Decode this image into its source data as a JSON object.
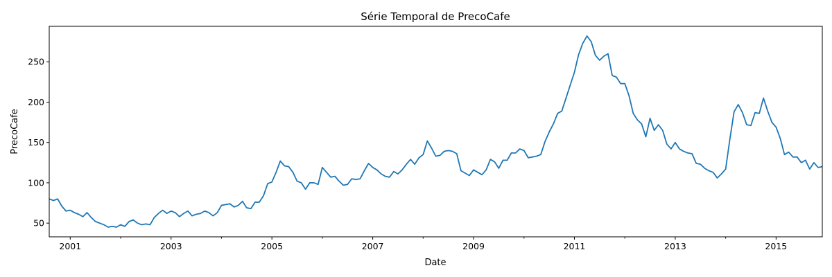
{
  "chart_data": {
    "type": "line",
    "title": "Série Temporal de PrecoCafe",
    "xlabel": "Date",
    "ylabel": "PrecoCafe",
    "x_range": [
      "2000-08",
      "2015-12"
    ],
    "ylim": [
      33,
      294
    ],
    "x_ticks": [
      "2001",
      "2003",
      "2005",
      "2007",
      "2009",
      "2011",
      "2013",
      "2015"
    ],
    "y_ticks": [
      "50",
      "100",
      "150",
      "200",
      "250"
    ],
    "grid": false,
    "line_color": "#1f77b4",
    "series": [
      {
        "x": [
          "2000-08",
          "2000-09",
          "2000-10",
          "2000-11",
          "2000-12",
          "2001-01",
          "2001-02",
          "2001-03",
          "2001-04",
          "2001-05",
          "2001-06",
          "2001-07",
          "2001-08",
          "2001-09",
          "2001-10",
          "2001-11",
          "2001-12",
          "2002-01",
          "2002-02",
          "2002-03",
          "2002-04",
          "2002-05",
          "2002-06",
          "2002-07",
          "2002-08",
          "2002-09",
          "2002-10",
          "2002-11",
          "2002-12",
          "2003-01",
          "2003-02",
          "2003-03",
          "2003-04",
          "2003-05",
          "2003-06",
          "2003-07",
          "2003-08",
          "2003-09",
          "2003-10",
          "2003-11",
          "2003-12",
          "2004-01",
          "2004-02",
          "2004-03",
          "2004-04",
          "2004-05",
          "2004-06",
          "2004-07",
          "2004-08",
          "2004-09",
          "2004-10",
          "2004-11",
          "2004-12",
          "2005-01",
          "2005-02",
          "2005-03",
          "2005-04",
          "2005-05",
          "2005-06",
          "2005-07",
          "2005-08",
          "2005-09",
          "2005-10",
          "2005-11",
          "2005-12",
          "2006-01",
          "2006-02",
          "2006-03",
          "2006-04",
          "2006-05",
          "2006-06",
          "2006-07",
          "2006-08",
          "2006-09",
          "2006-10",
          "2006-11",
          "2006-12",
          "2007-01",
          "2007-02",
          "2007-03",
          "2007-04",
          "2007-05",
          "2007-06",
          "2007-07",
          "2007-08",
          "2007-09",
          "2007-10",
          "2007-11",
          "2007-12",
          "2008-01",
          "2008-02",
          "2008-03",
          "2008-04",
          "2008-05",
          "2008-06",
          "2008-07",
          "2008-08",
          "2008-09",
          "2008-10",
          "2008-11",
          "2008-12",
          "2009-01",
          "2009-02",
          "2009-03",
          "2009-04",
          "2009-05",
          "2009-06",
          "2009-07",
          "2009-08",
          "2009-09",
          "2009-10",
          "2009-11",
          "2009-12",
          "2010-01",
          "2010-02",
          "2010-03",
          "2010-04",
          "2010-05",
          "2010-06",
          "2010-07",
          "2010-08",
          "2010-09",
          "2010-10",
          "2010-11",
          "2010-12",
          "2011-01",
          "2011-02",
          "2011-03",
          "2011-04",
          "2011-05",
          "2011-06",
          "2011-07",
          "2011-08",
          "2011-09",
          "2011-10",
          "2011-11",
          "2011-12",
          "2012-01",
          "2012-02",
          "2012-03",
          "2012-04",
          "2012-05",
          "2012-06",
          "2012-07",
          "2012-08",
          "2012-09",
          "2012-10",
          "2012-11",
          "2012-12",
          "2013-01",
          "2013-02",
          "2013-03",
          "2013-04",
          "2013-05",
          "2013-06",
          "2013-07",
          "2013-08",
          "2013-09",
          "2013-10",
          "2013-11",
          "2013-12",
          "2014-01",
          "2014-02",
          "2014-03",
          "2014-04",
          "2014-05",
          "2014-06",
          "2014-07",
          "2014-08",
          "2014-09",
          "2014-10",
          "2014-11",
          "2014-12",
          "2015-01",
          "2015-02",
          "2015-03",
          "2015-04",
          "2015-05",
          "2015-06",
          "2015-07",
          "2015-08",
          "2015-09",
          "2015-10",
          "2015-11",
          "2015-12"
        ],
        "y": [
          80,
          78,
          80,
          71,
          65,
          66,
          63,
          61,
          58,
          63,
          57,
          52,
          50,
          48,
          45,
          46,
          45,
          48,
          46,
          52,
          54,
          50,
          48,
          49,
          48,
          57,
          62,
          66,
          62,
          65,
          63,
          58,
          62,
          65,
          59,
          61,
          62,
          65,
          63,
          59,
          63,
          72,
          73,
          74,
          70,
          72,
          77,
          69,
          68,
          76,
          76,
          84,
          99,
          101,
          113,
          127,
          121,
          120,
          113,
          102,
          100,
          92,
          100,
          100,
          98,
          119,
          113,
          107,
          108,
          102,
          97,
          98,
          105,
          104,
          105,
          115,
          124,
          119,
          116,
          111,
          108,
          107,
          114,
          111,
          116,
          123,
          129,
          123,
          131,
          135,
          152,
          143,
          133,
          134,
          139,
          140,
          139,
          136,
          115,
          112,
          109,
          116,
          113,
          110,
          116,
          129,
          126,
          118,
          128,
          128,
          137,
          137,
          142,
          140,
          131,
          132,
          133,
          135,
          151,
          163,
          173,
          186,
          189,
          205,
          221,
          237,
          259,
          273,
          282,
          275,
          258,
          252,
          257,
          260,
          233,
          231,
          223,
          223,
          208,
          186,
          178,
          173,
          157,
          180,
          165,
          172,
          165,
          148,
          142,
          150,
          142,
          139,
          137,
          136,
          124,
          123,
          118,
          115,
          113,
          106,
          111,
          117,
          154,
          188,
          197,
          187,
          172,
          171,
          187,
          186,
          205,
          189,
          175,
          169,
          155,
          135,
          138,
          132,
          132,
          125,
          128,
          117,
          125,
          119,
          120
        ]
      }
    ]
  }
}
